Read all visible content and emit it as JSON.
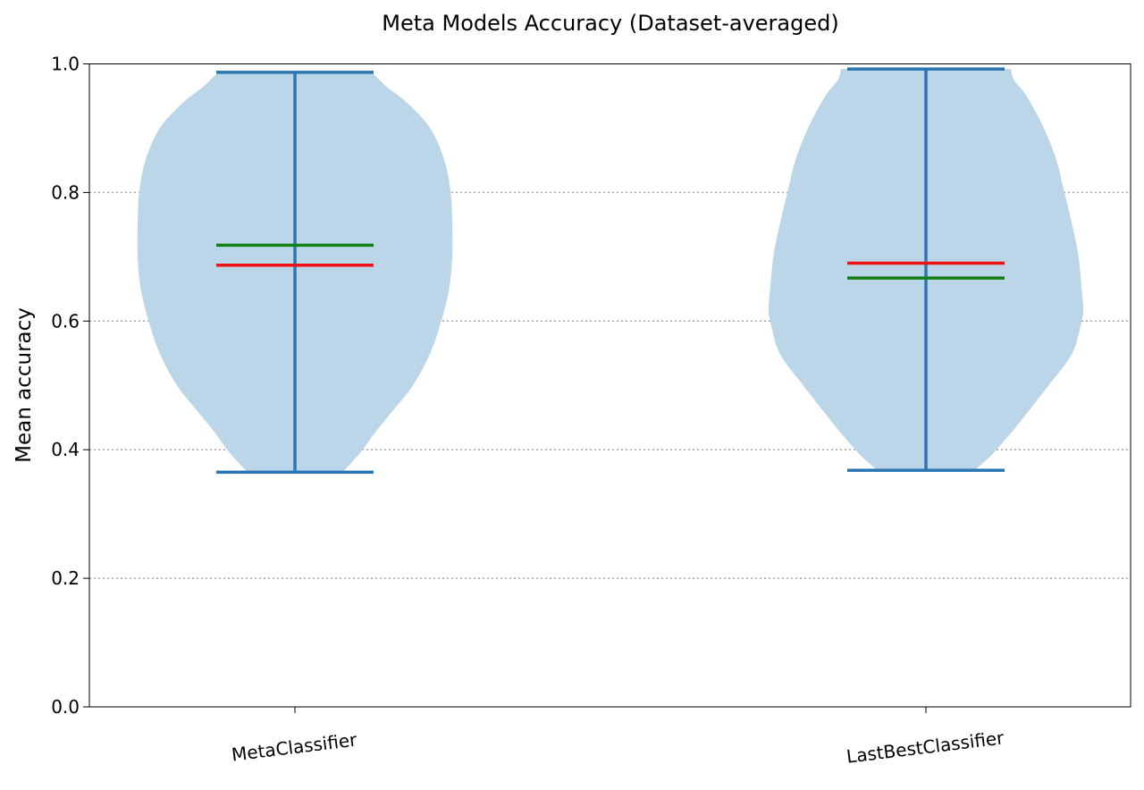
{
  "chart_data": {
    "type": "violin",
    "title": "Meta Models Accuracy (Dataset-averaged)",
    "xlabel": "",
    "ylabel": "Mean accuracy",
    "ylim": [
      0.0,
      1.0
    ],
    "yticks": [
      "0.0",
      "0.2",
      "0.4",
      "0.6",
      "0.8",
      "1.0"
    ],
    "grid": "horizontal-dotted",
    "categories": [
      "MetaClassifier",
      "LastBestClassifier"
    ],
    "violins": [
      {
        "category": "MetaClassifier",
        "min": 0.365,
        "max": 0.987,
        "mean": 0.687,
        "median": 0.718,
        "density": [
          [
            0.365,
            0.3
          ],
          [
            0.38,
            0.36
          ],
          [
            0.4,
            0.43
          ],
          [
            0.43,
            0.52
          ],
          [
            0.46,
            0.62
          ],
          [
            0.5,
            0.75
          ],
          [
            0.55,
            0.86
          ],
          [
            0.6,
            0.93
          ],
          [
            0.65,
            0.98
          ],
          [
            0.7,
            1.0
          ],
          [
            0.75,
            1.0
          ],
          [
            0.8,
            0.99
          ],
          [
            0.85,
            0.95
          ],
          [
            0.9,
            0.86
          ],
          [
            0.94,
            0.71
          ],
          [
            0.965,
            0.58
          ],
          [
            0.987,
            0.49
          ]
        ]
      },
      {
        "category": "LastBestClassifier",
        "min": 0.368,
        "max": 0.992,
        "mean": 0.69,
        "median": 0.667,
        "density": [
          [
            0.368,
            0.31
          ],
          [
            0.39,
            0.41
          ],
          [
            0.42,
            0.52
          ],
          [
            0.45,
            0.62
          ],
          [
            0.5,
            0.78
          ],
          [
            0.55,
            0.93
          ],
          [
            0.6,
            0.99
          ],
          [
            0.62,
            1.0
          ],
          [
            0.65,
            0.99
          ],
          [
            0.7,
            0.97
          ],
          [
            0.75,
            0.93
          ],
          [
            0.8,
            0.88
          ],
          [
            0.85,
            0.83
          ],
          [
            0.9,
            0.75
          ],
          [
            0.95,
            0.64
          ],
          [
            0.975,
            0.56
          ],
          [
            0.992,
            0.54
          ]
        ]
      }
    ],
    "colors": {
      "body": "#bad6e8",
      "stem": "#2a77b4",
      "mean": "#ee1111",
      "median": "#138013",
      "grid": "#a6a6a6"
    }
  }
}
